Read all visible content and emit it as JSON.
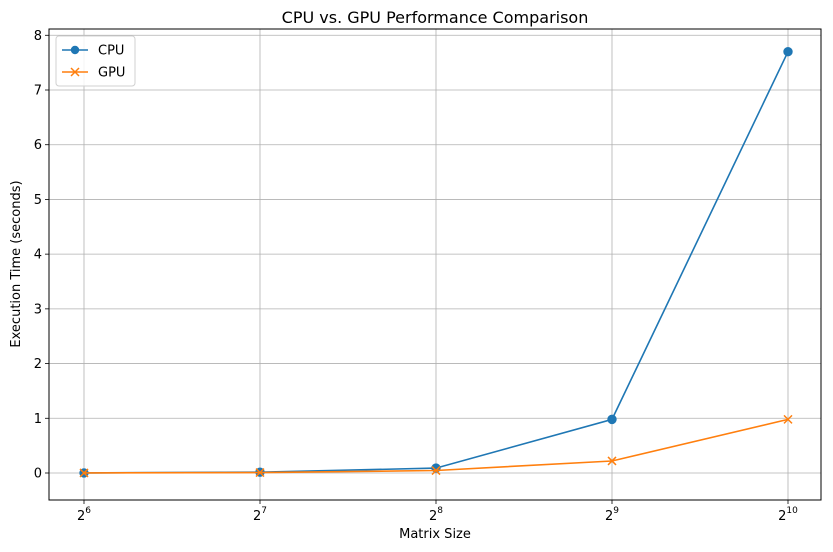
{
  "chart_data": {
    "type": "line",
    "title": "CPU vs. GPU Performance Comparison",
    "xlabel": "Matrix Size",
    "ylabel": "Execution Time (seconds)",
    "x_scale": "log2",
    "x": [
      64,
      128,
      256,
      512,
      1024
    ],
    "x_ticks": [
      {
        "value": 64,
        "base": "2",
        "exp": "6"
      },
      {
        "value": 128,
        "base": "2",
        "exp": "7"
      },
      {
        "value": 256,
        "base": "2",
        "exp": "8"
      },
      {
        "value": 512,
        "base": "2",
        "exp": "9"
      },
      {
        "value": 1024,
        "base": "2",
        "exp": "10"
      }
    ],
    "y_ticks": [
      "0",
      "1",
      "2",
      "3",
      "4",
      "5",
      "6",
      "7",
      "8"
    ],
    "ylim": [
      -0.35,
      8.1
    ],
    "grid": true,
    "legend_position": "top-left",
    "series": [
      {
        "name": "CPU",
        "color": "#1f77b4",
        "marker": "circle",
        "values": [
          0.002,
          0.015,
          0.09,
          0.98,
          7.7
        ]
      },
      {
        "name": "GPU",
        "color": "#ff7f0e",
        "marker": "x",
        "values": [
          0.001,
          0.008,
          0.045,
          0.22,
          0.98
        ]
      }
    ]
  }
}
